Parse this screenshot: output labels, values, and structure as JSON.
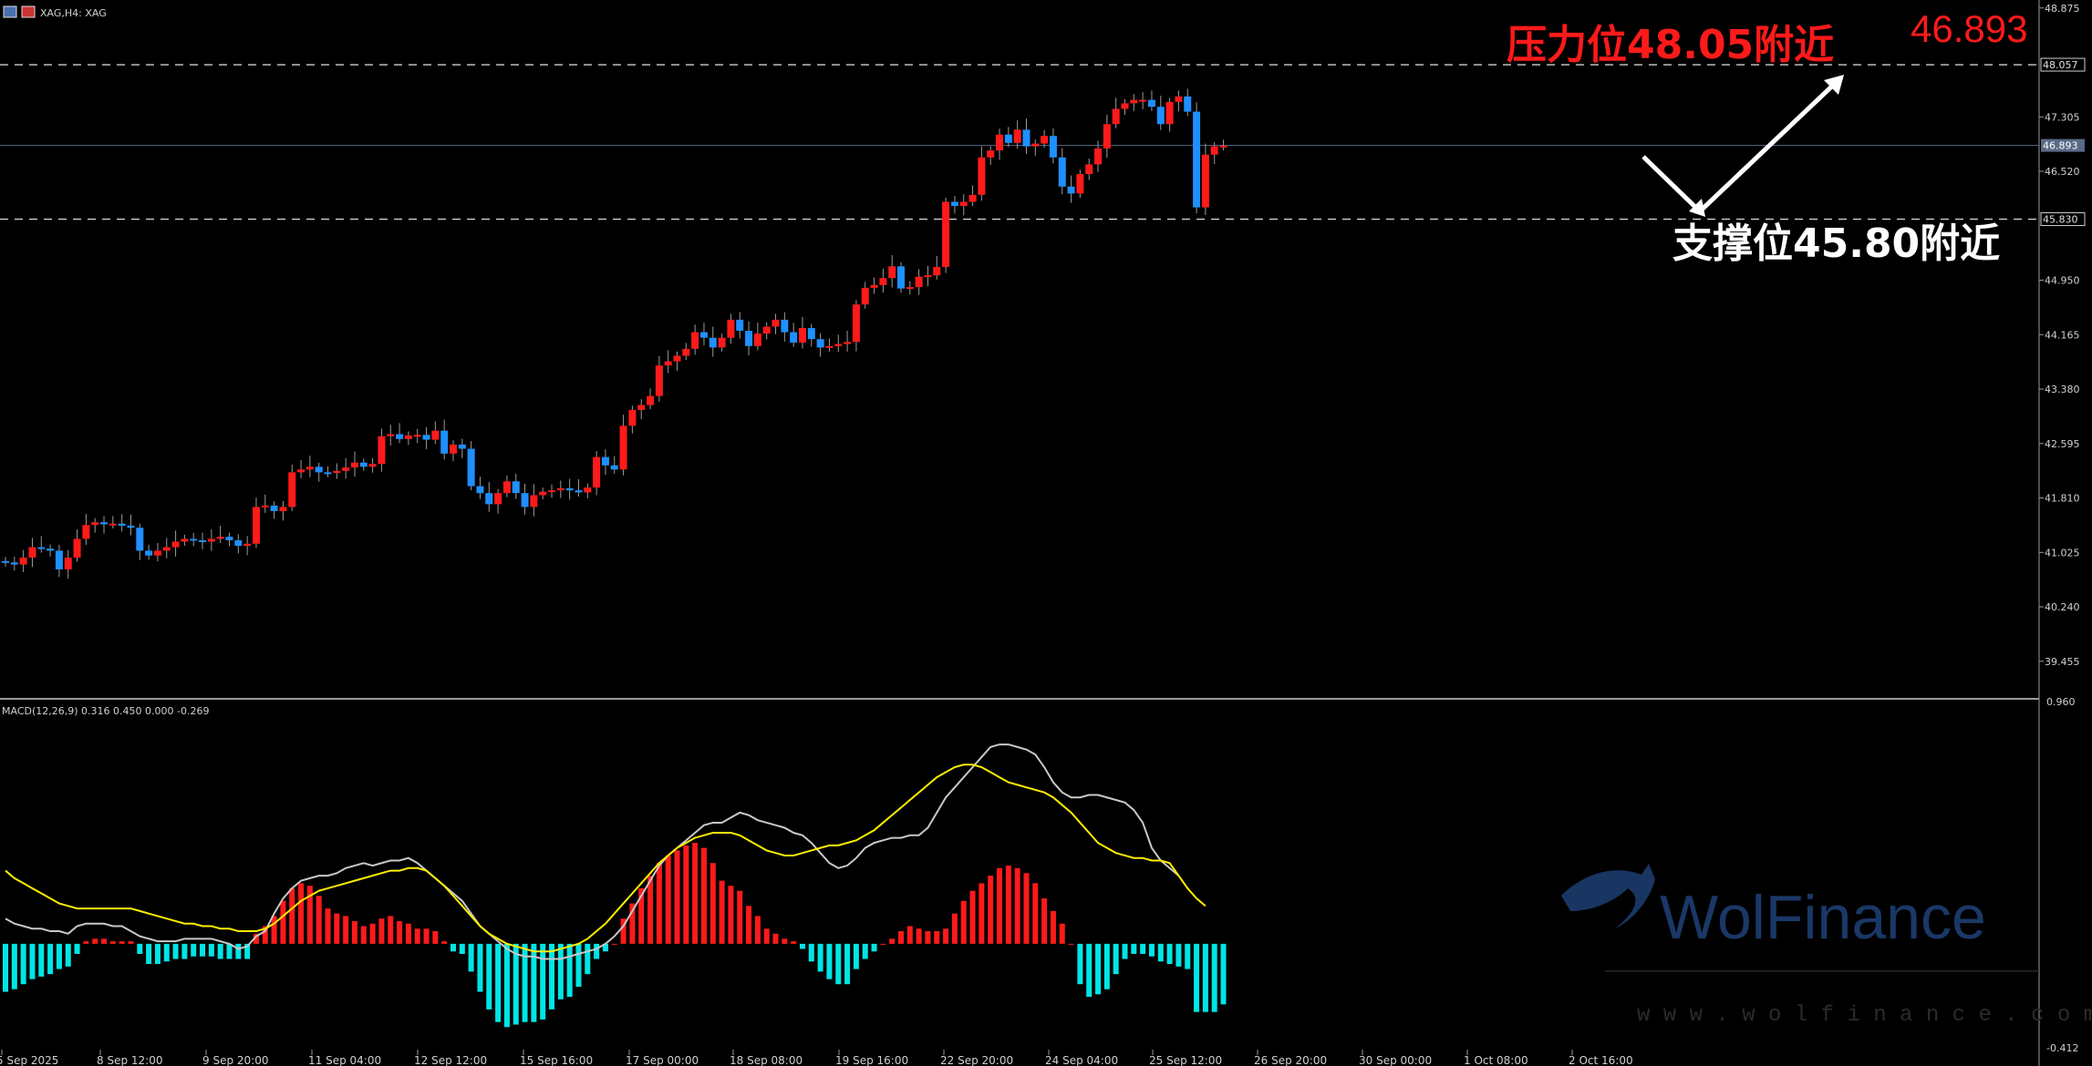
{
  "header": {
    "symbol_label": "XAG,H4: XAG"
  },
  "price_labels": {
    "last_price_big": "46.893",
    "resistance_text": "压力位48.05附近",
    "support_text": "支撑位45.80附近",
    "resistance_tag": "48.057",
    "support_tag": "45.830",
    "current_tag": "46.893"
  },
  "macd_header": "MACD(12,26,9) 0.316 0.450 0.000 -0.269",
  "watermark": {
    "brand": "WolFinance",
    "url": "w w w . w o l f i n a n c e . c o m"
  },
  "colors": {
    "up_candle": "#ff1a1a",
    "down_candle": "#1e90ff",
    "macd_pos": "#ff1a1a",
    "macd_neg": "#00e5e5",
    "macd_line": "#c8c8c8",
    "signal_line": "#ffee00",
    "annotation_red": "#ff1a1a",
    "grid_dash": "#cfcfcf"
  },
  "chart_data": [
    {
      "type": "candlestick",
      "title": "XAG,H4: XAG",
      "ylim": [
        38.94,
        48.99
      ],
      "y_ticks": [
        "48.875",
        "47.305",
        "46.520",
        "44.950",
        "44.165",
        "43.380",
        "42.595",
        "41.810",
        "41.025",
        "40.240",
        "39.455"
      ],
      "x_ticks": [
        "5 Sep 2025",
        "8 Sep 12:00",
        "9 Sep 20:00",
        "11 Sep 04:00",
        "12 Sep 12:00",
        "15 Sep 16:00",
        "17 Sep 00:00",
        "18 Sep 08:00",
        "19 Sep 16:00",
        "22 Sep 20:00",
        "24 Sep 04:00",
        "25 Sep 12:00",
        "26 Sep 20:00",
        "30 Sep 00:00",
        "1 Oct 08:00",
        "2 Oct 16:00"
      ],
      "levels": {
        "resistance": 48.057,
        "support": 45.83,
        "current": 46.893
      },
      "closes": [
        40.88,
        40.85,
        40.95,
        41.1,
        41.08,
        41.05,
        40.78,
        40.95,
        41.22,
        41.42,
        41.46,
        41.43,
        41.44,
        41.41,
        41.38,
        41.05,
        40.98,
        41.05,
        41.1,
        41.18,
        41.22,
        41.2,
        41.18,
        41.22,
        41.25,
        41.2,
        41.12,
        41.15,
        41.68,
        41.7,
        41.62,
        41.68,
        42.18,
        42.22,
        42.26,
        42.18,
        42.17,
        42.2,
        42.25,
        42.32,
        42.26,
        42.3,
        42.7,
        42.73,
        42.66,
        42.71,
        42.72,
        42.65,
        42.78,
        42.45,
        42.58,
        42.52,
        41.98,
        41.88,
        41.72,
        41.88,
        42.05,
        41.88,
        41.68,
        41.85,
        41.9,
        41.92,
        41.95,
        41.92,
        41.89,
        41.96,
        42.4,
        42.28,
        42.22,
        42.85,
        43.08,
        43.15,
        43.28,
        43.72,
        43.78,
        43.86,
        43.96,
        44.2,
        44.12,
        43.98,
        44.12,
        44.38,
        44.22,
        44.0,
        44.18,
        44.28,
        44.38,
        44.2,
        44.05,
        44.26,
        44.1,
        43.98,
        44.0,
        44.03,
        44.06,
        44.6,
        44.84,
        44.88,
        44.98,
        45.15,
        44.83,
        44.85,
        45.0,
        45.02,
        45.14,
        46.08,
        46.02,
        46.08,
        46.18,
        46.72,
        46.82,
        47.05,
        46.93,
        47.12,
        46.88,
        46.92,
        47.03,
        46.72,
        46.3,
        46.2,
        46.48,
        46.62,
        46.85,
        47.2,
        47.42,
        47.5,
        47.55,
        47.55,
        47.45,
        47.2,
        47.52,
        47.6,
        47.38,
        46.0,
        46.76,
        46.88,
        46.89
      ],
      "opens": [
        40.9,
        40.88,
        40.85,
        40.95,
        41.1,
        41.08,
        41.05,
        40.78,
        40.95,
        41.22,
        41.42,
        41.46,
        41.43,
        41.44,
        41.41,
        41.38,
        41.05,
        40.98,
        41.05,
        41.1,
        41.18,
        41.22,
        41.2,
        41.18,
        41.22,
        41.25,
        41.2,
        41.12,
        41.15,
        41.68,
        41.7,
        41.62,
        41.68,
        42.18,
        42.22,
        42.26,
        42.18,
        42.17,
        42.2,
        42.25,
        42.32,
        42.26,
        42.3,
        42.7,
        42.73,
        42.66,
        42.71,
        42.72,
        42.65,
        42.78,
        42.45,
        42.58,
        42.52,
        41.98,
        41.88,
        41.72,
        41.88,
        42.05,
        41.88,
        41.68,
        41.85,
        41.9,
        41.92,
        41.95,
        41.92,
        41.89,
        41.96,
        42.4,
        42.28,
        42.22,
        42.85,
        43.08,
        43.15,
        43.28,
        43.72,
        43.78,
        43.86,
        43.96,
        44.2,
        44.12,
        43.98,
        44.12,
        44.38,
        44.22,
        44.0,
        44.18,
        44.28,
        44.38,
        44.2,
        44.05,
        44.26,
        44.1,
        43.98,
        44.0,
        44.03,
        44.06,
        44.6,
        44.84,
        44.88,
        44.98,
        45.15,
        44.83,
        44.85,
        45.0,
        45.02,
        45.14,
        46.08,
        46.02,
        46.08,
        46.18,
        46.72,
        46.82,
        47.05,
        46.93,
        47.12,
        46.88,
        46.92,
        47.03,
        46.72,
        46.3,
        46.2,
        46.48,
        46.62,
        46.85,
        47.2,
        47.42,
        47.5,
        47.55,
        47.55,
        47.45,
        47.2,
        47.52,
        47.6,
        47.38,
        46.0,
        46.76,
        46.88
      ]
    },
    {
      "type": "macd",
      "title": "MACD(12,26,9) 0.316 0.450 0.000 -0.269",
      "ylim": [
        -0.412,
        0.96
      ],
      "y_ticks": [
        "0.960",
        "-0.412"
      ],
      "histogram": [
        -0.19,
        -0.18,
        -0.16,
        -0.14,
        -0.13,
        -0.12,
        -0.1,
        -0.09,
        -0.04,
        0.01,
        0.02,
        0.02,
        0.01,
        0.01,
        0.01,
        -0.04,
        -0.08,
        -0.08,
        -0.07,
        -0.06,
        -0.06,
        -0.05,
        -0.05,
        -0.05,
        -0.06,
        -0.06,
        -0.06,
        -0.06,
        0.04,
        0.07,
        0.11,
        0.17,
        0.22,
        0.24,
        0.23,
        0.19,
        0.14,
        0.12,
        0.11,
        0.09,
        0.07,
        0.08,
        0.1,
        0.11,
        0.09,
        0.08,
        0.06,
        0.06,
        0.05,
        0.01,
        -0.03,
        -0.04,
        -0.11,
        -0.19,
        -0.26,
        -0.31,
        -0.33,
        -0.32,
        -0.31,
        -0.31,
        -0.3,
        -0.26,
        -0.22,
        -0.21,
        -0.17,
        -0.12,
        -0.06,
        -0.03,
        0.0,
        0.1,
        0.16,
        0.22,
        0.27,
        0.32,
        0.35,
        0.37,
        0.39,
        0.4,
        0.38,
        0.32,
        0.25,
        0.23,
        0.21,
        0.15,
        0.11,
        0.06,
        0.04,
        0.02,
        0.01,
        -0.02,
        -0.07,
        -0.11,
        -0.14,
        -0.16,
        -0.16,
        -0.1,
        -0.06,
        -0.03,
        0.0,
        0.02,
        0.05,
        0.07,
        0.06,
        0.05,
        0.05,
        0.06,
        0.12,
        0.17,
        0.21,
        0.24,
        0.27,
        0.3,
        0.31,
        0.3,
        0.28,
        0.24,
        0.18,
        0.13,
        0.08,
        0.0,
        -0.16,
        -0.21,
        -0.2,
        -0.18,
        -0.12,
        -0.06,
        -0.04,
        -0.04,
        -0.05,
        -0.07,
        -0.08,
        -0.09,
        -0.1,
        -0.27,
        -0.27,
        -0.27,
        -0.24
      ],
      "macd": [
        0.1,
        0.08,
        0.07,
        0.06,
        0.06,
        0.05,
        0.05,
        0.04,
        0.07,
        0.08,
        0.08,
        0.08,
        0.07,
        0.07,
        0.05,
        0.03,
        0.02,
        0.01,
        0.01,
        0.01,
        0.02,
        0.02,
        0.02,
        0.02,
        0.01,
        0.0,
        -0.02,
        -0.01,
        0.03,
        0.05,
        0.12,
        0.18,
        0.22,
        0.25,
        0.26,
        0.27,
        0.27,
        0.28,
        0.3,
        0.31,
        0.32,
        0.31,
        0.32,
        0.33,
        0.33,
        0.34,
        0.32,
        0.29,
        0.26,
        0.23,
        0.2,
        0.17,
        0.12,
        0.07,
        0.04,
        0.01,
        -0.02,
        -0.04,
        -0.05,
        -0.05,
        -0.06,
        -0.06,
        -0.06,
        -0.05,
        -0.04,
        -0.03,
        -0.02,
        0.0,
        0.03,
        0.07,
        0.13,
        0.19,
        0.25,
        0.31,
        0.35,
        0.38,
        0.41,
        0.44,
        0.47,
        0.48,
        0.48,
        0.5,
        0.52,
        0.51,
        0.49,
        0.48,
        0.47,
        0.46,
        0.44,
        0.43,
        0.4,
        0.36,
        0.32,
        0.3,
        0.31,
        0.34,
        0.38,
        0.4,
        0.41,
        0.42,
        0.42,
        0.43,
        0.43,
        0.46,
        0.52,
        0.58,
        0.62,
        0.66,
        0.7,
        0.74,
        0.78,
        0.79,
        0.79,
        0.78,
        0.77,
        0.75,
        0.7,
        0.64,
        0.6,
        0.58,
        0.58,
        0.59,
        0.59,
        0.58,
        0.57,
        0.56,
        0.53,
        0.48,
        0.38,
        0.33,
        0.3,
        0.27
      ],
      "signal": [
        0.29,
        0.26,
        0.24,
        0.22,
        0.2,
        0.18,
        0.16,
        0.15,
        0.14,
        0.14,
        0.14,
        0.14,
        0.14,
        0.14,
        0.14,
        0.13,
        0.12,
        0.11,
        0.1,
        0.09,
        0.08,
        0.08,
        0.07,
        0.07,
        0.06,
        0.06,
        0.05,
        0.05,
        0.05,
        0.06,
        0.08,
        0.11,
        0.14,
        0.17,
        0.19,
        0.21,
        0.22,
        0.23,
        0.24,
        0.25,
        0.26,
        0.27,
        0.28,
        0.29,
        0.29,
        0.3,
        0.3,
        0.29,
        0.26,
        0.23,
        0.19,
        0.15,
        0.11,
        0.07,
        0.04,
        0.02,
        0.0,
        -0.01,
        -0.02,
        -0.03,
        -0.03,
        -0.03,
        -0.02,
        -0.01,
        0.0,
        0.02,
        0.05,
        0.08,
        0.12,
        0.16,
        0.2,
        0.24,
        0.28,
        0.32,
        0.35,
        0.38,
        0.4,
        0.42,
        0.43,
        0.44,
        0.44,
        0.44,
        0.43,
        0.41,
        0.39,
        0.37,
        0.36,
        0.35,
        0.35,
        0.36,
        0.37,
        0.38,
        0.39,
        0.39,
        0.4,
        0.41,
        0.43,
        0.45,
        0.48,
        0.51,
        0.54,
        0.57,
        0.6,
        0.63,
        0.66,
        0.68,
        0.7,
        0.71,
        0.71,
        0.7,
        0.68,
        0.66,
        0.64,
        0.63,
        0.62,
        0.61,
        0.6,
        0.58,
        0.55,
        0.52,
        0.48,
        0.44,
        0.4,
        0.38,
        0.36,
        0.35,
        0.34,
        0.34,
        0.33,
        0.33,
        0.32,
        0.27,
        0.22,
        0.18,
        0.15
      ]
    }
  ]
}
